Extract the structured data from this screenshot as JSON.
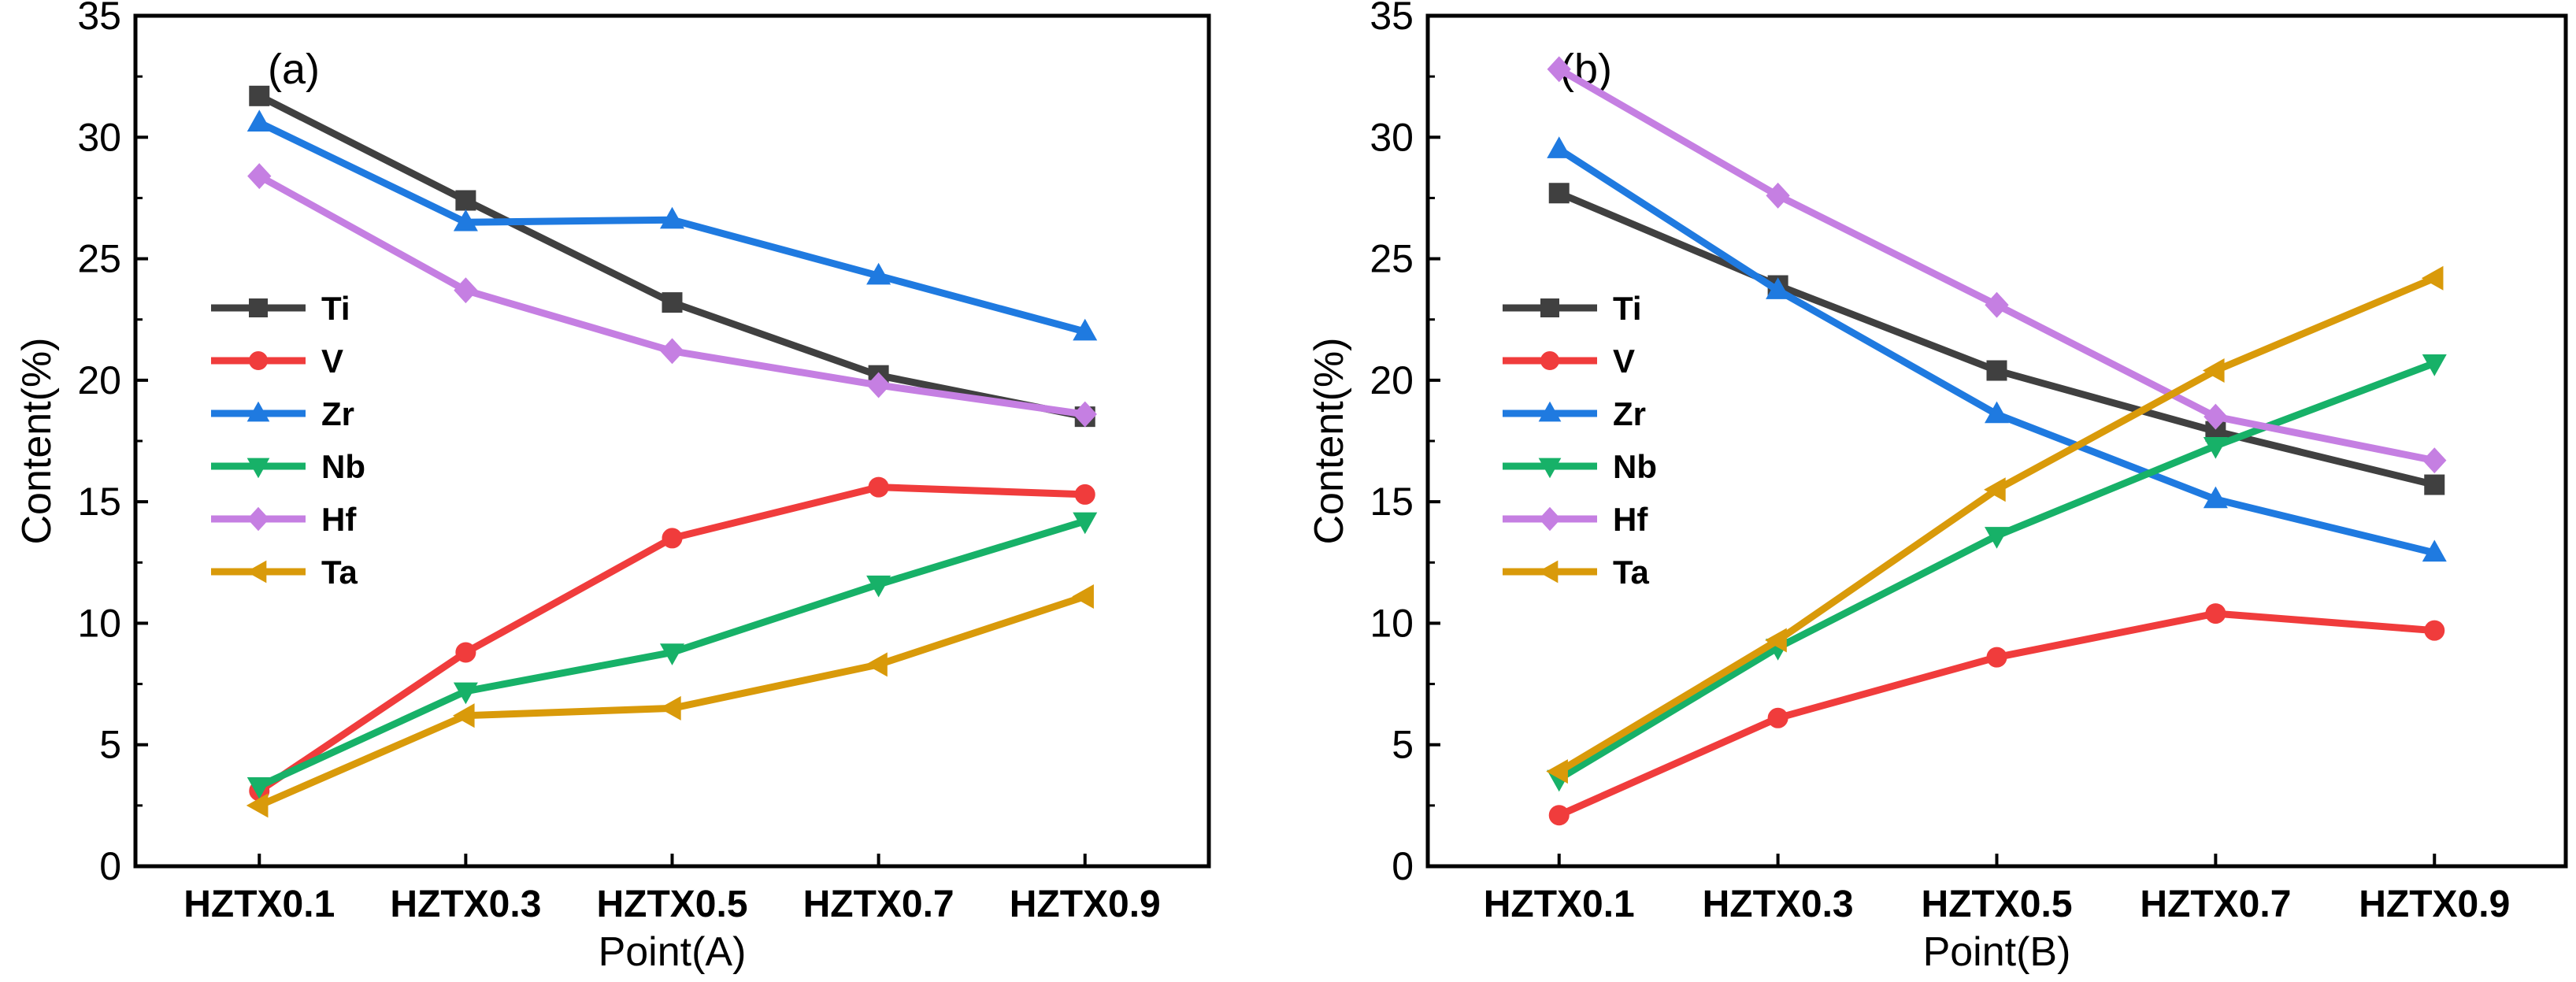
{
  "chart_data": [
    {
      "type": "line",
      "panel_label": "(a)",
      "xlabel": "Point(A)",
      "ylabel": "Content(%)",
      "categories": [
        "HZTX0.1",
        "HZTX0.3",
        "HZTX0.5",
        "HZTX0.7",
        "HZTX0.9"
      ],
      "ylim": [
        0,
        35
      ],
      "yticks": [
        0,
        5,
        10,
        15,
        20,
        25,
        30,
        35
      ],
      "legend_position": "left",
      "series": [
        {
          "name": "Ti",
          "color": "#404040",
          "marker": "square",
          "values": [
            31.7,
            27.4,
            23.2,
            20.2,
            18.5
          ]
        },
        {
          "name": "V",
          "color": "#f03c3c",
          "marker": "circle",
          "values": [
            3.1,
            8.8,
            13.5,
            15.6,
            15.3
          ]
        },
        {
          "name": "Zr",
          "color": "#1f7ae0",
          "marker": "triangle-up",
          "values": [
            30.6,
            26.5,
            26.6,
            24.3,
            22.0
          ]
        },
        {
          "name": "Nb",
          "color": "#17b168",
          "marker": "triangle-down",
          "values": [
            3.3,
            7.2,
            8.8,
            11.6,
            14.2
          ]
        },
        {
          "name": "Hf",
          "color": "#c57fe2",
          "marker": "diamond",
          "values": [
            28.4,
            23.7,
            21.2,
            19.8,
            18.6
          ]
        },
        {
          "name": "Ta",
          "color": "#d99a0a",
          "marker": "triangle-left",
          "values": [
            2.5,
            6.2,
            6.5,
            8.3,
            11.1
          ]
        }
      ]
    },
    {
      "type": "line",
      "panel_label": "(b)",
      "xlabel": "Point(B)",
      "ylabel": "Content(%)",
      "categories": [
        "HZTX0.1",
        "HZTX0.3",
        "HZTX0.5",
        "HZTX0.7",
        "HZTX0.9"
      ],
      "ylim": [
        0,
        35
      ],
      "yticks": [
        0,
        5,
        10,
        15,
        20,
        25,
        30,
        35
      ],
      "legend_position": "left",
      "series": [
        {
          "name": "Ti",
          "color": "#404040",
          "marker": "square",
          "values": [
            27.7,
            23.9,
            20.4,
            17.9,
            15.7
          ]
        },
        {
          "name": "V",
          "color": "#f03c3c",
          "marker": "circle",
          "values": [
            2.1,
            6.1,
            8.6,
            10.4,
            9.7
          ]
        },
        {
          "name": "Zr",
          "color": "#1f7ae0",
          "marker": "triangle-up",
          "values": [
            29.5,
            23.7,
            18.6,
            15.1,
            12.9
          ]
        },
        {
          "name": "Nb",
          "color": "#17b168",
          "marker": "triangle-down",
          "values": [
            3.6,
            9.0,
            13.6,
            17.3,
            20.7
          ]
        },
        {
          "name": "Hf",
          "color": "#c57fe2",
          "marker": "diamond",
          "values": [
            32.8,
            27.6,
            23.1,
            18.5,
            16.7
          ]
        },
        {
          "name": "Ta",
          "color": "#d99a0a",
          "marker": "triangle-left",
          "values": [
            3.9,
            9.3,
            15.5,
            20.4,
            24.2
          ]
        }
      ]
    }
  ]
}
